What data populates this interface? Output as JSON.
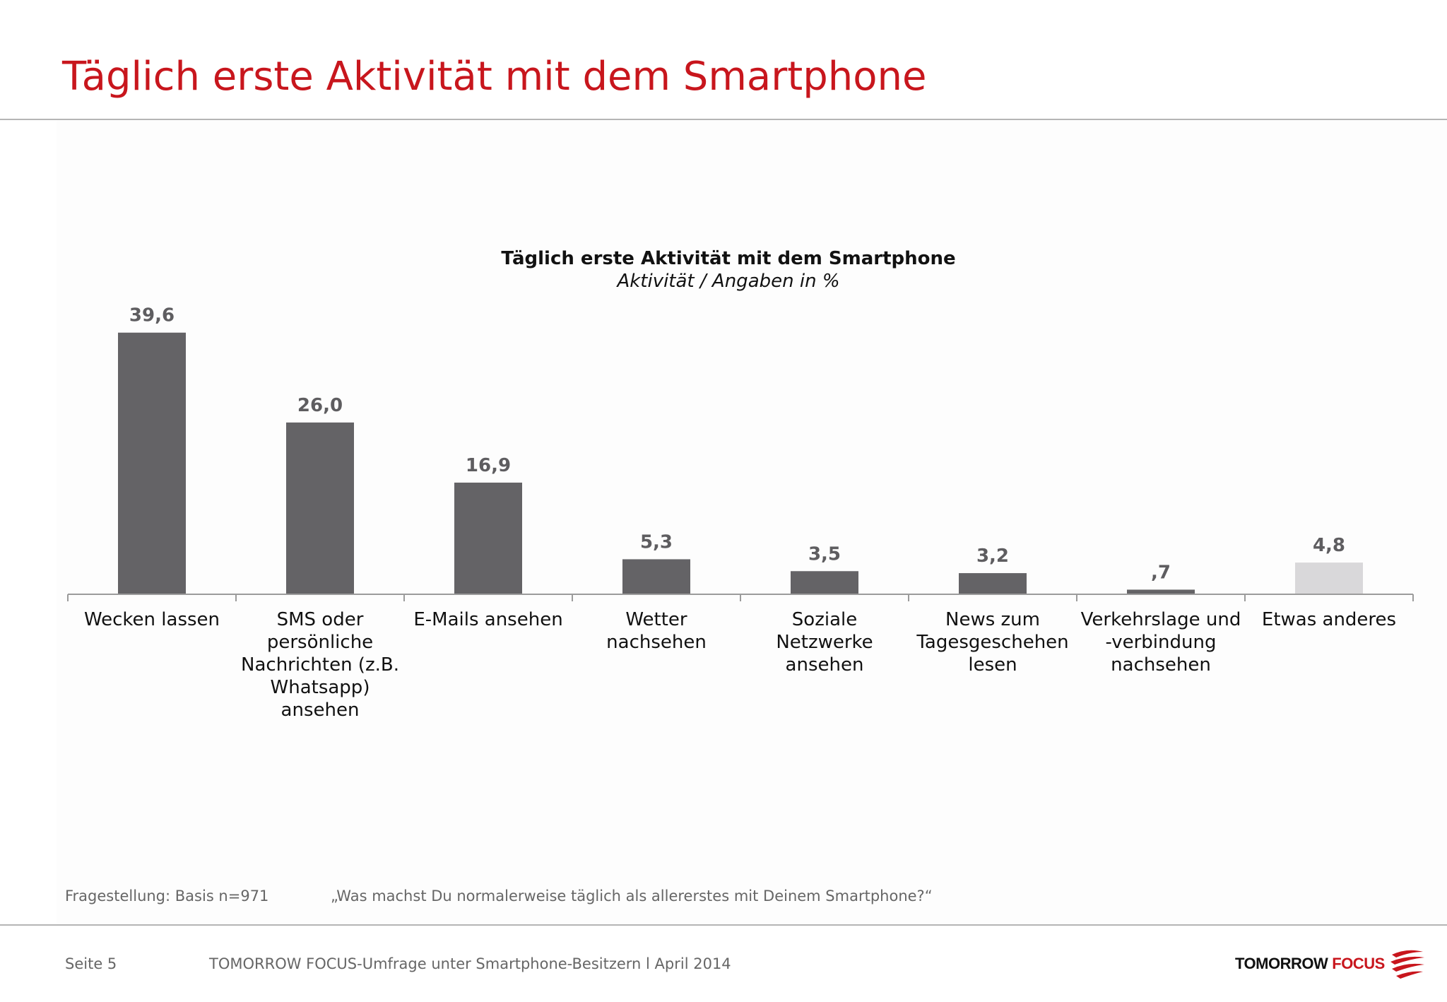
{
  "page": {
    "title": "Täglich erste Aktivität mit dem Smartphone"
  },
  "chart_data": {
    "type": "bar",
    "title": "Täglich erste Aktivität mit dem Smartphone",
    "subtitle": "Aktivität / Angaben in %",
    "categories": [
      "Wecken lassen",
      "SMS oder persönliche Nachrichten (z.B. Whatsapp) ansehen",
      "E-Mails ansehen",
      "Wetter nachsehen",
      "Soziale Netzwerke ansehen",
      "News zum Tagesgeschehen lesen",
      "Verkehrslage und -verbindung nachsehen",
      "Etwas anderes"
    ],
    "category_lines": [
      [
        "Wecken lassen"
      ],
      [
        "SMS oder",
        "persönliche",
        "Nachrichten (z.B.",
        "Whatsapp)",
        "ansehen"
      ],
      [
        "E-Mails ansehen"
      ],
      [
        "Wetter",
        "nachsehen"
      ],
      [
        "Soziale",
        "Netzwerke",
        "ansehen"
      ],
      [
        "News zum",
        "Tagesgeschehen",
        "lesen"
      ],
      [
        "Verkehrslage und",
        "-verbindung",
        "nachsehen"
      ],
      [
        "Etwas anderes"
      ]
    ],
    "values": [
      39.6,
      26.0,
      16.9,
      5.3,
      3.5,
      3.2,
      0.7,
      4.8
    ],
    "value_labels": [
      "39,6",
      "26,0",
      "16,9",
      "5,3",
      "3,5",
      "3,2",
      ",7",
      "4,8"
    ],
    "bar_colors": [
      "#646366",
      "#646366",
      "#646366",
      "#646366",
      "#646366",
      "#646366",
      "#646366",
      "#d9d8da"
    ],
    "xlabel": "",
    "ylabel": "",
    "ylim": [
      0,
      40
    ],
    "grid": false,
    "legend": "none"
  },
  "footnote": {
    "label": "Fragestellung: Basis n=971",
    "question": "„Was machst Du normalerweise täglich als allererstes mit Deinem Smartphone?“"
  },
  "footer": {
    "page_label": "Seite 5",
    "source": "TOMORROW FOCUS-Umfrage unter Smartphone-Besitzern l April 2014",
    "logo_word_1": "TOMORROW",
    "logo_word_2": "FOCUS"
  },
  "colors": {
    "accent": "#c8161d",
    "bar": "#646366",
    "bar_other": "#d9d8da",
    "value_label": "#5e5d60",
    "axis": "#9b9b9b"
  },
  "icons": {
    "logo_mark": "tomorrow-focus-swoosh-icon"
  }
}
